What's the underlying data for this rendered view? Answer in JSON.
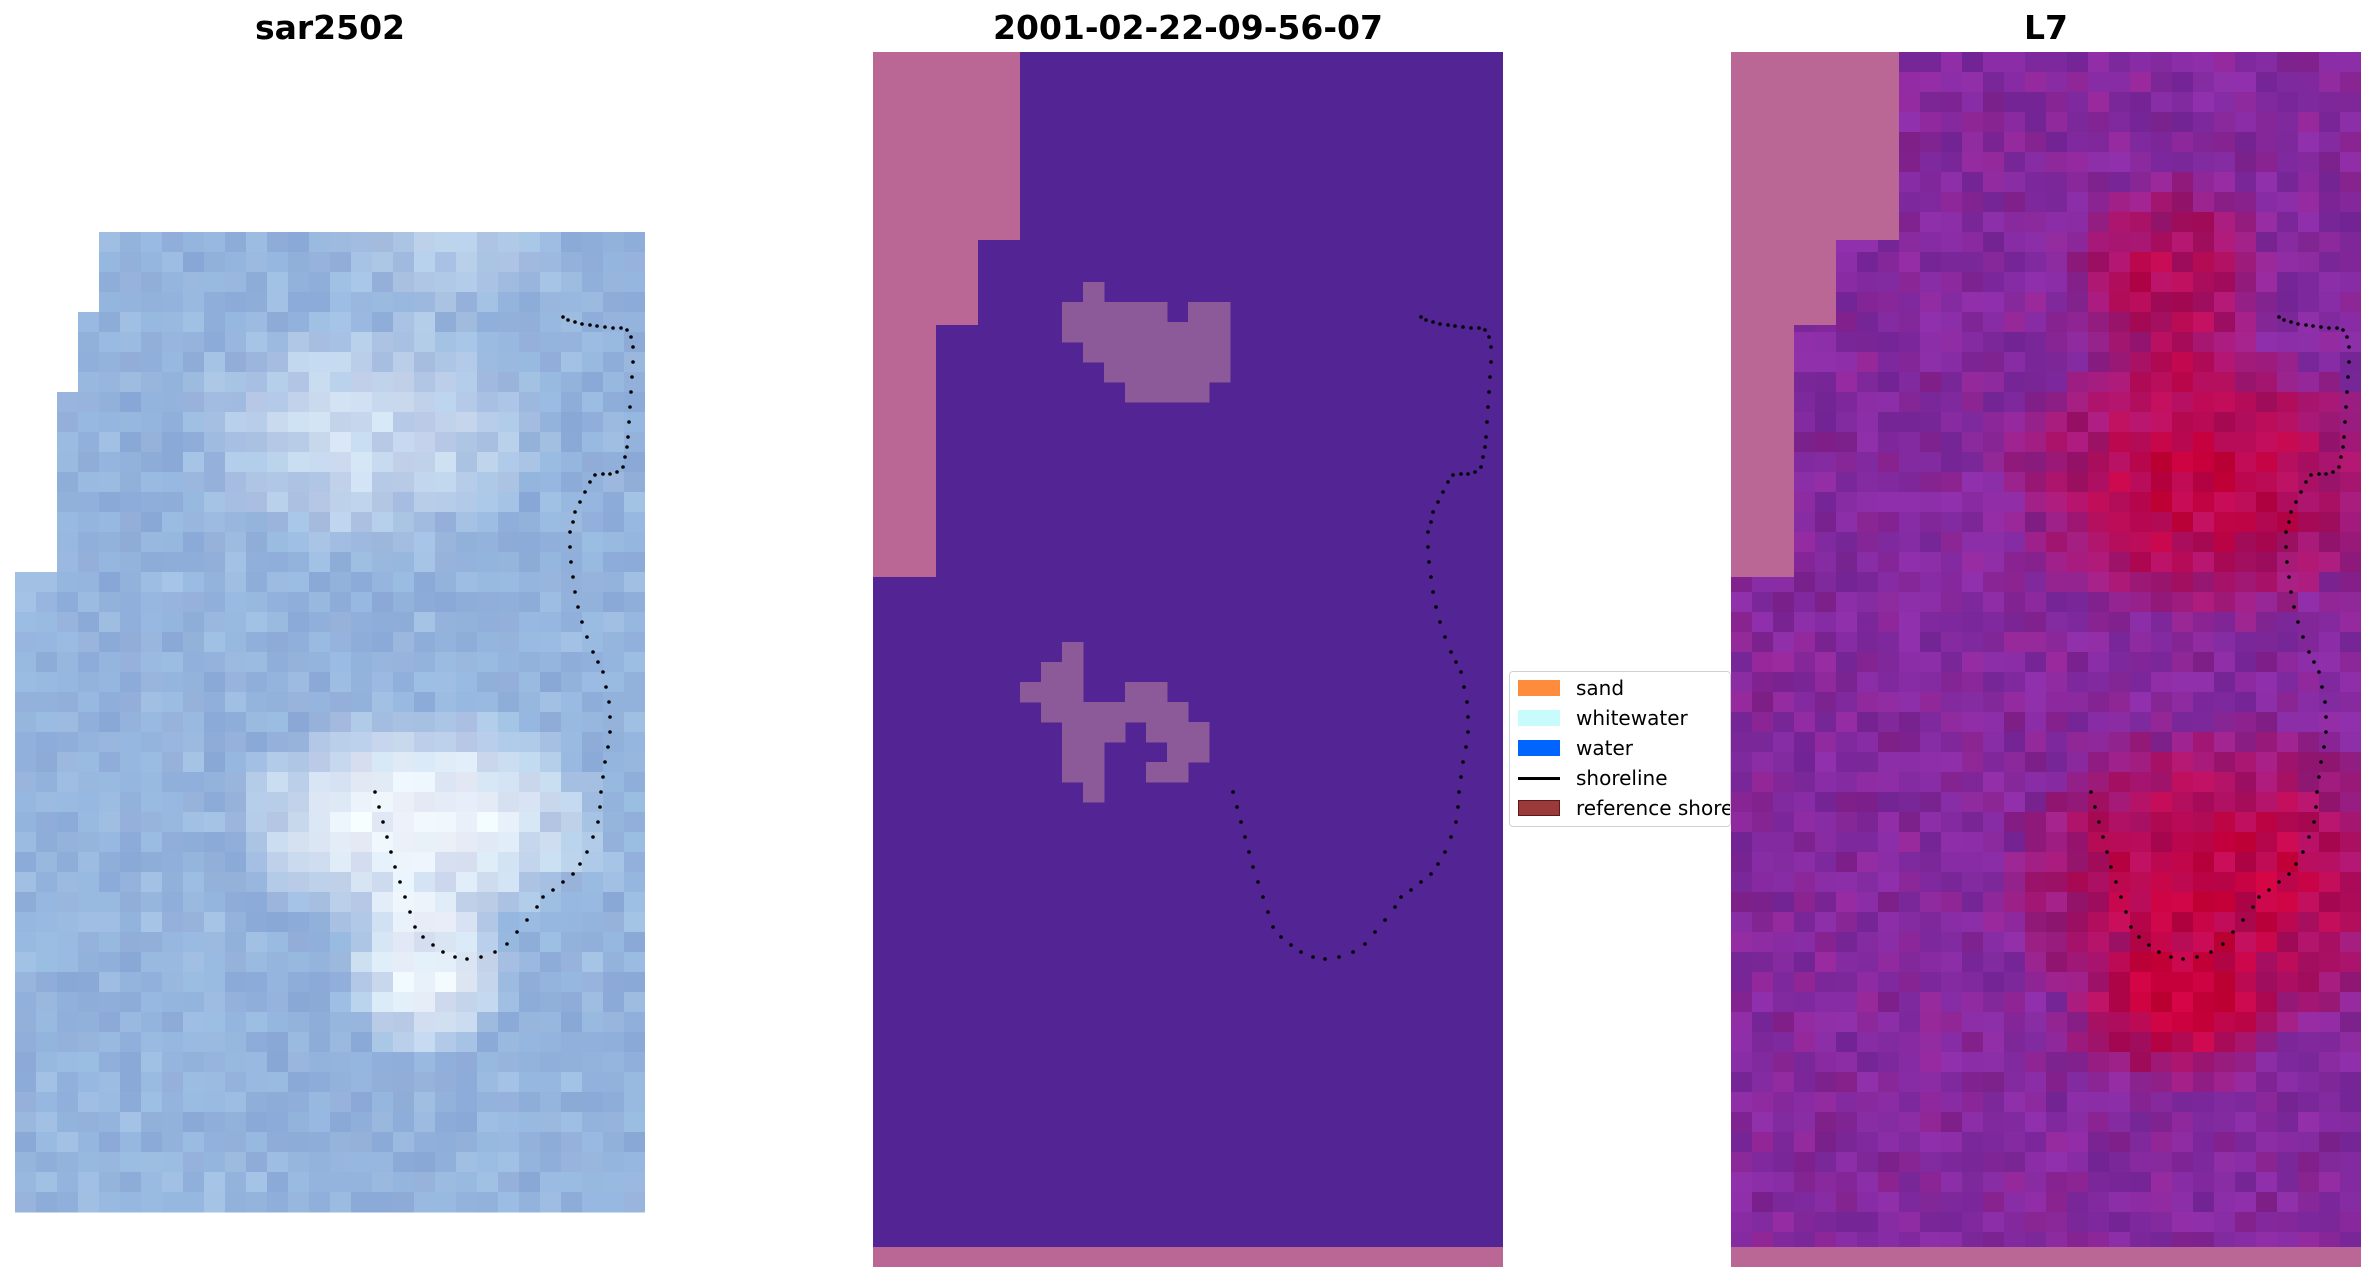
{
  "chart_data": [
    {
      "type": "heatmap",
      "title": "sar2502",
      "panel": "rgb-image",
      "colors": {
        "base": "#92b2dc",
        "bright": "#eef4fb",
        "mask": "#ffffff"
      }
    },
    {
      "type": "heatmap",
      "title": "2001-02-22-09-56-07",
      "panel": "classification",
      "colors": {
        "water_class": "#522494",
        "nodata": "#bb6795",
        "whitewater_class": "#8c5a98"
      }
    },
    {
      "type": "heatmap",
      "title": "L7",
      "panel": "index-image",
      "colors": {
        "low": "#822aa0",
        "high": "#c8003c",
        "nodata": "#bb6795"
      }
    }
  ],
  "legend": {
    "items": [
      {
        "label": "sand",
        "kind": "patch",
        "color": "#ff8c3c"
      },
      {
        "label": "whitewater",
        "kind": "patch",
        "color": "#c8fcfc"
      },
      {
        "label": "water",
        "kind": "patch",
        "color": "#0064ff"
      },
      {
        "label": "shoreline",
        "kind": "line",
        "color": "#000000"
      },
      {
        "label": "reference shoreline",
        "kind": "patch",
        "color": "#9b3a3a"
      }
    ]
  }
}
